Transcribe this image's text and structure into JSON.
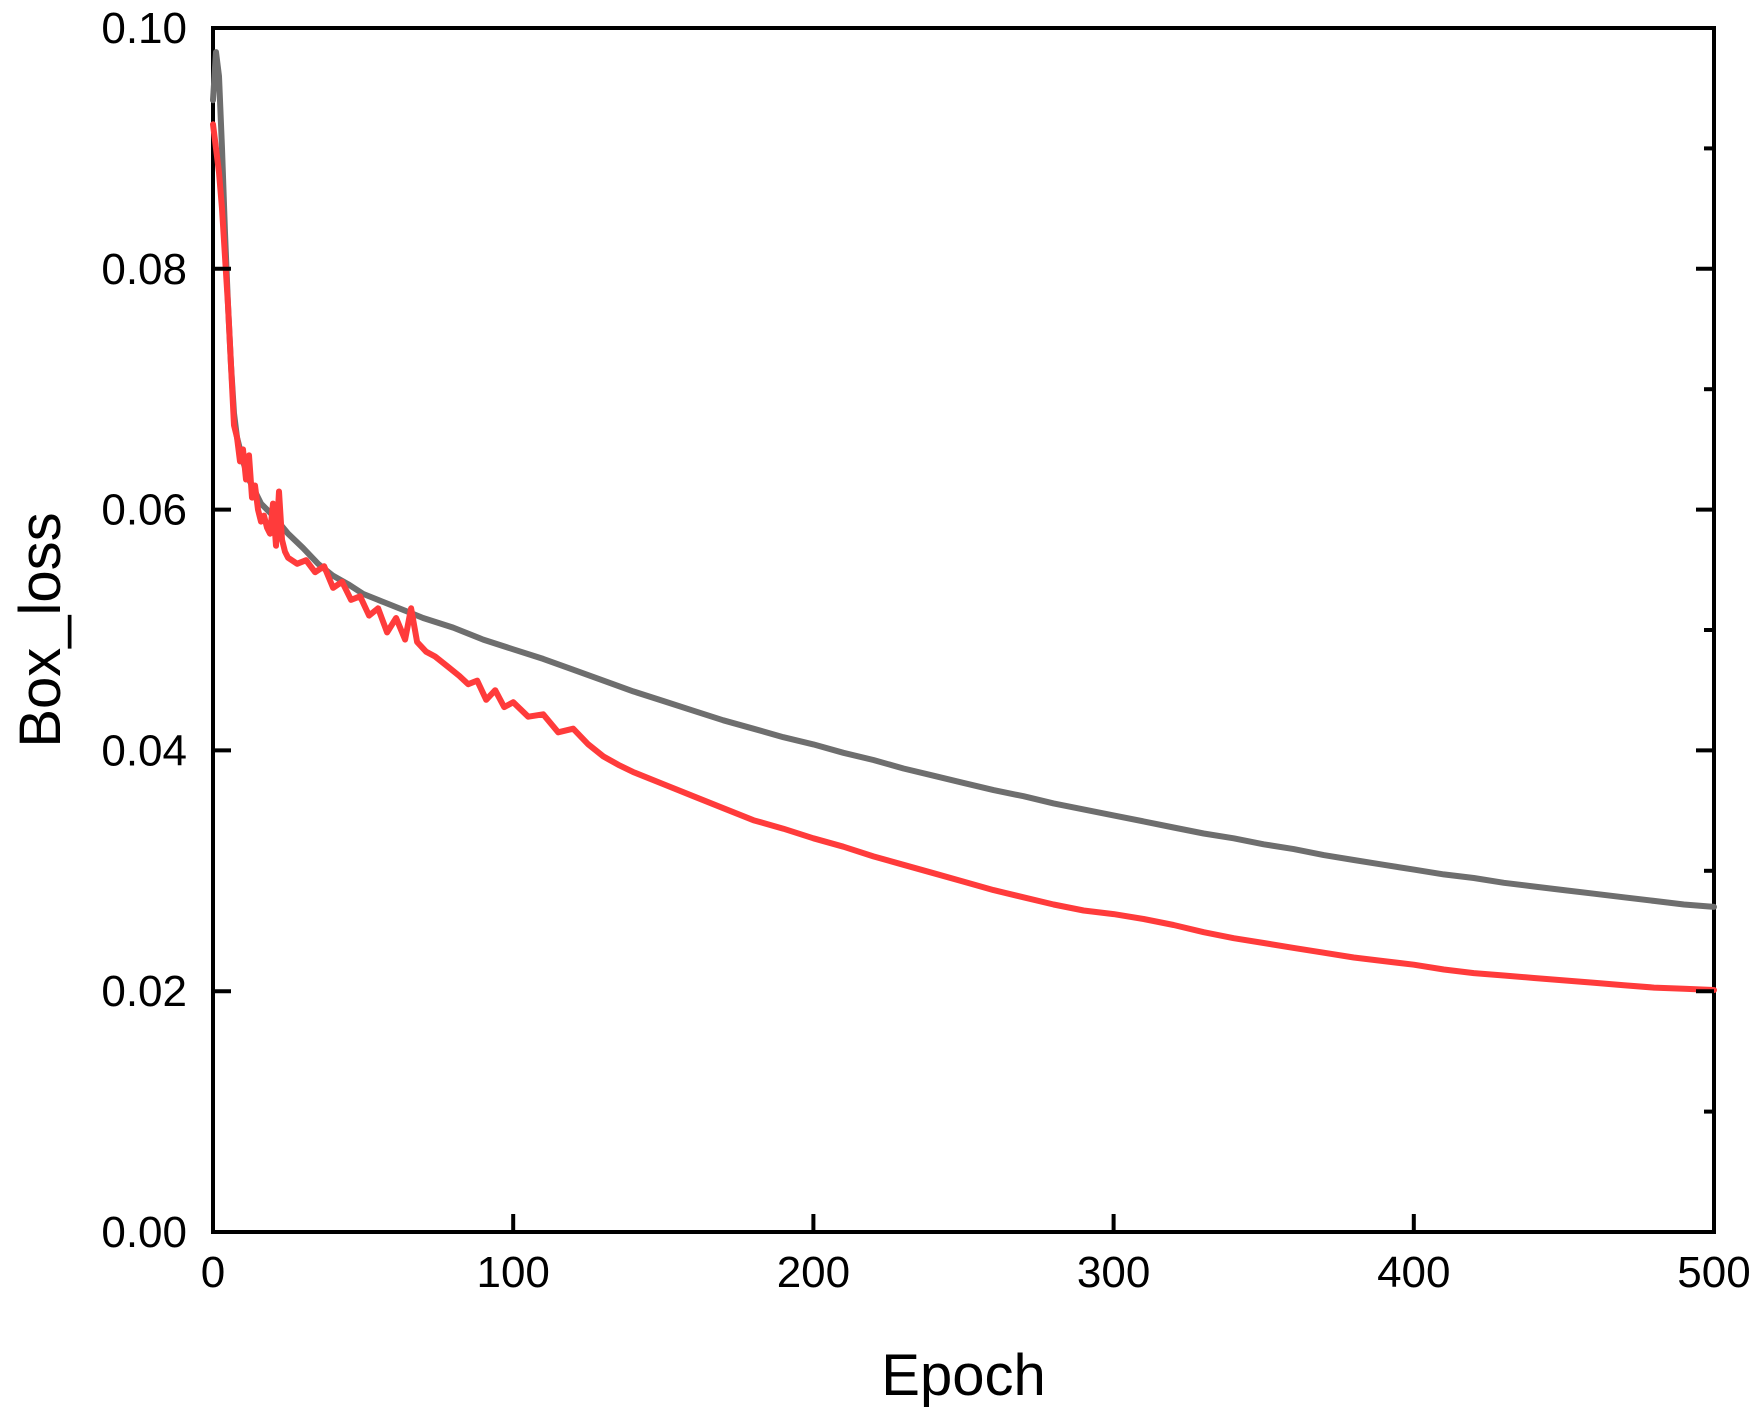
{
  "chart_data": {
    "type": "line",
    "title": "",
    "xlabel": "Epoch",
    "ylabel": "Box_loss",
    "xlim": [
      0,
      500
    ],
    "ylim": [
      0.0,
      0.1
    ],
    "x_ticks": [
      0,
      100,
      200,
      300,
      400,
      500
    ],
    "x_tick_labels": [
      "0",
      "100",
      "200",
      "300",
      "400",
      "500"
    ],
    "y_ticks": [
      0.0,
      0.02,
      0.04,
      0.06,
      0.08,
      0.1
    ],
    "y_tick_labels": [
      "0.00",
      "0.02",
      "0.04",
      "0.06",
      "0.08",
      "0.10"
    ],
    "y_minor_ticks": [
      0.01,
      0.03,
      0.05,
      0.07,
      0.09
    ],
    "grid": false,
    "legend": "none",
    "series": [
      {
        "color": "#6e6e6e",
        "x": [
          0,
          1,
          2,
          3,
          4,
          5,
          6,
          7,
          8,
          10,
          12,
          14,
          16,
          18,
          20,
          25,
          30,
          35,
          40,
          45,
          50,
          55,
          60,
          65,
          70,
          80,
          90,
          100,
          110,
          120,
          130,
          140,
          150,
          160,
          170,
          180,
          190,
          200,
          210,
          220,
          230,
          240,
          250,
          260,
          270,
          280,
          290,
          300,
          310,
          320,
          330,
          340,
          350,
          360,
          370,
          380,
          390,
          400,
          410,
          420,
          430,
          440,
          450,
          460,
          470,
          480,
          490,
          500
        ],
        "y": [
          0.094,
          0.098,
          0.096,
          0.09,
          0.083,
          0.077,
          0.072,
          0.068,
          0.066,
          0.064,
          0.0625,
          0.0615,
          0.0605,
          0.06,
          0.0595,
          0.058,
          0.0568,
          0.0555,
          0.0545,
          0.0538,
          0.053,
          0.0525,
          0.052,
          0.0515,
          0.051,
          0.0502,
          0.0492,
          0.0484,
          0.0476,
          0.0467,
          0.0458,
          0.0449,
          0.0441,
          0.0433,
          0.0425,
          0.0418,
          0.0411,
          0.0405,
          0.0398,
          0.0392,
          0.0385,
          0.0379,
          0.0373,
          0.0367,
          0.0362,
          0.0356,
          0.0351,
          0.0346,
          0.0341,
          0.0336,
          0.0331,
          0.0327,
          0.0322,
          0.0318,
          0.0313,
          0.0309,
          0.0305,
          0.0301,
          0.0297,
          0.0294,
          0.029,
          0.0287,
          0.0284,
          0.0281,
          0.0278,
          0.0275,
          0.0272,
          0.027
        ]
      },
      {
        "color": "#ff3b3b",
        "x": [
          0,
          1,
          2,
          3,
          4,
          5,
          6,
          7,
          8,
          9,
          10,
          11,
          12,
          13,
          14,
          15,
          16,
          17,
          18,
          19,
          20,
          21,
          22,
          23,
          24,
          25,
          28,
          31,
          34,
          37,
          40,
          43,
          46,
          49,
          52,
          55,
          58,
          61,
          64,
          66,
          68,
          71,
          74,
          78,
          82,
          85,
          88,
          91,
          94,
          97,
          100,
          105,
          110,
          115,
          120,
          125,
          130,
          135,
          140,
          150,
          160,
          170,
          180,
          190,
          200,
          210,
          220,
          230,
          240,
          250,
          260,
          270,
          280,
          290,
          300,
          310,
          320,
          330,
          340,
          350,
          360,
          370,
          380,
          390,
          400,
          410,
          420,
          430,
          440,
          450,
          460,
          470,
          480,
          490,
          500
        ],
        "y": [
          0.092,
          0.09,
          0.088,
          0.085,
          0.081,
          0.077,
          0.072,
          0.067,
          0.066,
          0.064,
          0.065,
          0.0625,
          0.0645,
          0.061,
          0.062,
          0.06,
          0.059,
          0.0595,
          0.0585,
          0.058,
          0.0605,
          0.057,
          0.0615,
          0.0575,
          0.0565,
          0.056,
          0.0555,
          0.0558,
          0.0548,
          0.0553,
          0.0535,
          0.054,
          0.0525,
          0.0528,
          0.0512,
          0.0518,
          0.0498,
          0.051,
          0.0492,
          0.0518,
          0.049,
          0.0482,
          0.0478,
          0.047,
          0.0462,
          0.0455,
          0.0458,
          0.0442,
          0.045,
          0.0436,
          0.044,
          0.0428,
          0.043,
          0.0415,
          0.0418,
          0.0405,
          0.0395,
          0.0388,
          0.0382,
          0.0372,
          0.0362,
          0.0352,
          0.0342,
          0.0335,
          0.0327,
          0.032,
          0.0312,
          0.0305,
          0.0298,
          0.0291,
          0.0284,
          0.0278,
          0.0272,
          0.0267,
          0.0264,
          0.026,
          0.0255,
          0.0249,
          0.0244,
          0.024,
          0.0236,
          0.0232,
          0.0228,
          0.0225,
          0.0222,
          0.0218,
          0.0215,
          0.0213,
          0.0211,
          0.0209,
          0.0207,
          0.0205,
          0.0203,
          0.0202,
          0.0201
        ]
      }
    ]
  }
}
